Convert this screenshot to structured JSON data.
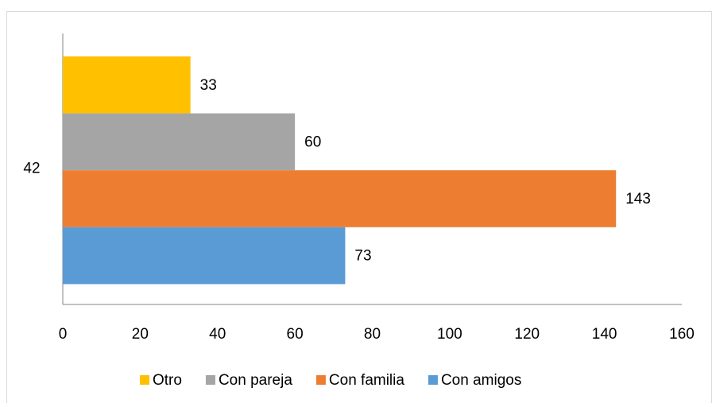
{
  "chart_data": {
    "type": "bar",
    "orientation": "horizontal",
    "categories": [
      "42"
    ],
    "series": [
      {
        "name": "Otro",
        "color": "#ffc000",
        "values": [
          33
        ]
      },
      {
        "name": "Con pareja",
        "color": "#a5a5a5",
        "values": [
          60
        ]
      },
      {
        "name": "Con familia",
        "color": "#ed7d31",
        "values": [
          143
        ]
      },
      {
        "name": "Con amigos",
        "color": "#5b9bd5",
        "values": [
          73
        ]
      }
    ],
    "xlim": [
      0,
      160
    ],
    "xticks": [
      0,
      20,
      40,
      60,
      80,
      100,
      120,
      140,
      160
    ],
    "legend": "bottom"
  }
}
